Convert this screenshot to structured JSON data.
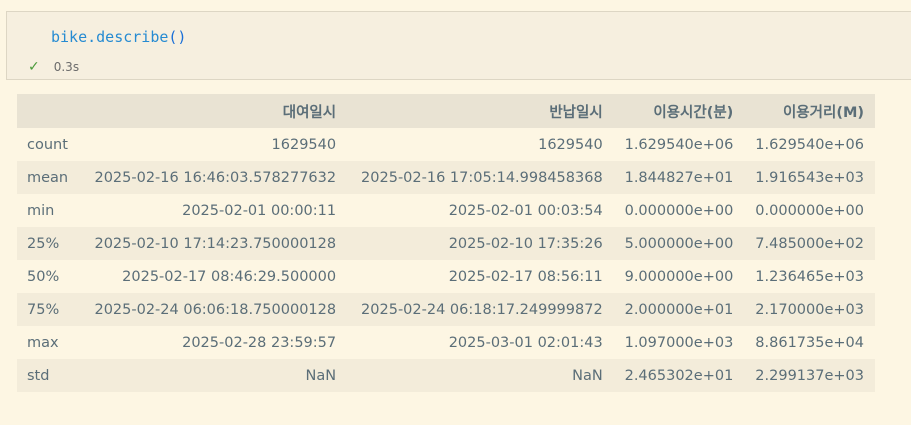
{
  "cell": {
    "code_obj": "bike.describe",
    "code_parens": "()",
    "status_icon": "check-icon",
    "exec_time": "0.3s"
  },
  "table": {
    "columns": [
      "",
      "대여일시",
      "반납일시",
      "이용시간(분)",
      "이용거리(M)"
    ],
    "rows": [
      [
        "count",
        "1629540",
        "1629540",
        "1.629540e+06",
        "1.629540e+06"
      ],
      [
        "mean",
        "2025-02-16 16:46:03.578277632",
        "2025-02-16 17:05:14.998458368",
        "1.844827e+01",
        "1.916543e+03"
      ],
      [
        "min",
        "2025-02-01 00:00:11",
        "2025-02-01 00:03:54",
        "0.000000e+00",
        "0.000000e+00"
      ],
      [
        "25%",
        "2025-02-10 17:14:23.750000128",
        "2025-02-10 17:35:26",
        "5.000000e+00",
        "7.485000e+02"
      ],
      [
        "50%",
        "2025-02-17 08:46:29.500000",
        "2025-02-17 08:56:11",
        "9.000000e+00",
        "1.236465e+03"
      ],
      [
        "75%",
        "2025-02-24 06:06:18.750000128",
        "2025-02-24 06:18:17.249999872",
        "2.000000e+01",
        "2.170000e+03"
      ],
      [
        "max",
        "2025-02-28 23:59:57",
        "2025-03-01 02:01:43",
        "1.097000e+03",
        "8.861735e+04"
      ],
      [
        "std",
        "NaN",
        "NaN",
        "2.465302e+01",
        "2.299137e+03"
      ]
    ]
  }
}
